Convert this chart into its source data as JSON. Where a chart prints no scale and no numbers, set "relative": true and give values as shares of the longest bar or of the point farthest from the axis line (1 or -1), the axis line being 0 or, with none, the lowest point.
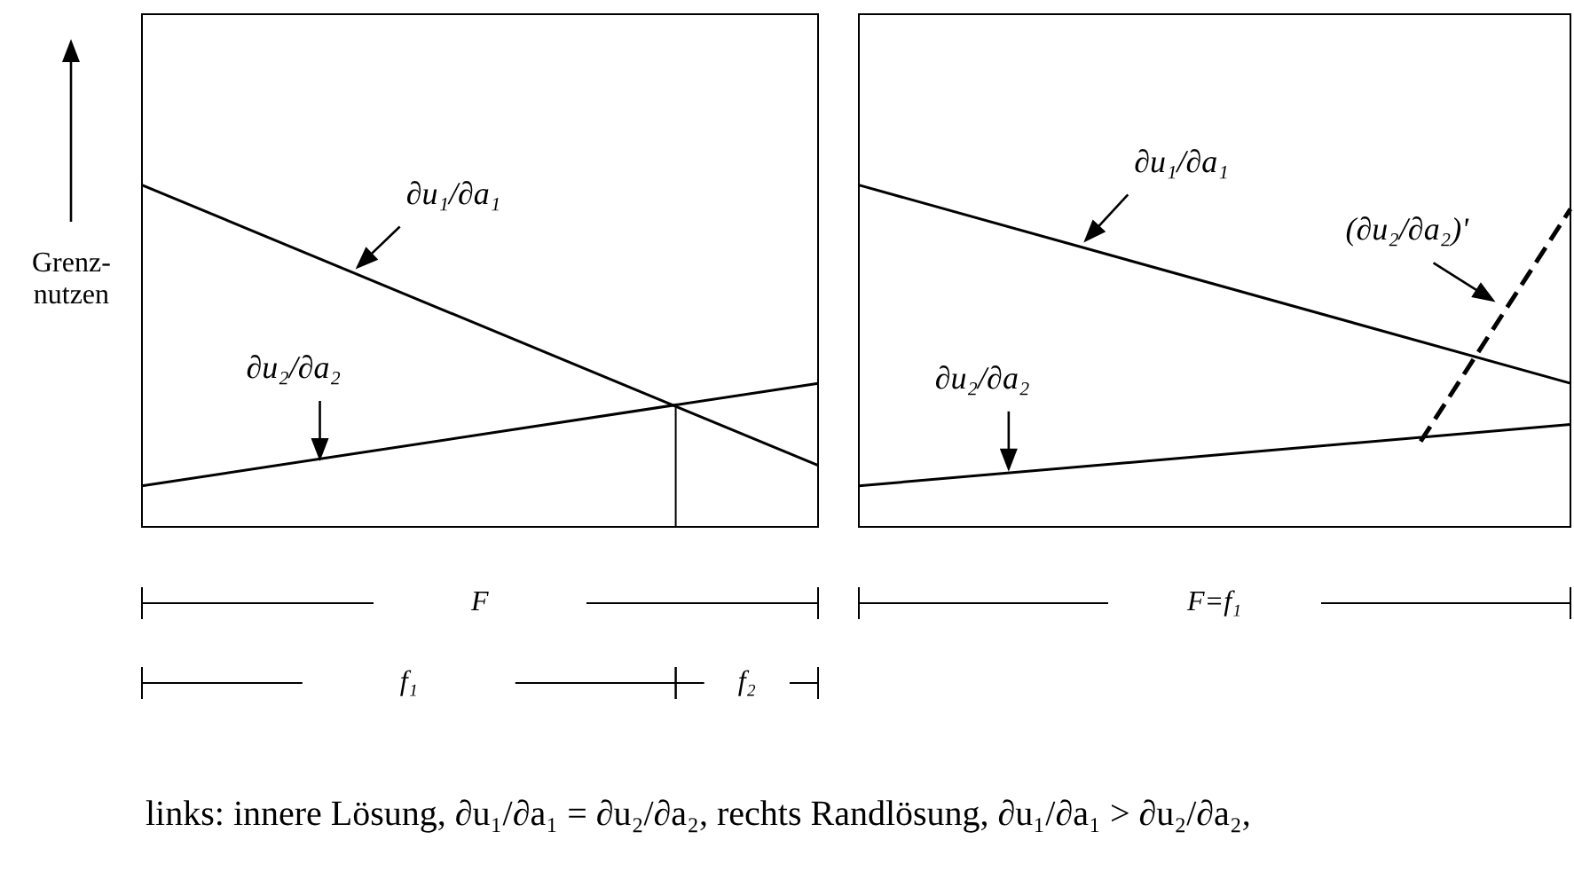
{
  "chart_data": [
    {
      "type": "line",
      "relative": true,
      "ylabel": "Grenz-\nnutzen",
      "categories": [
        null,
        null,
        null,
        null,
        null,
        null,
        null,
        null,
        null,
        null,
        null,
        null,
        null,
        null,
        null,
        null,
        null,
        null,
        null,
        null
      ],
      "tick_labels": false,
      "grid": false,
      "legend": false,
      "marker": "none",
      "annotations": [
        "F",
        "f₁",
        "f₂",
        "links: innere Lösung, ∂u₁/∂a₁ = ∂u₂/∂a₂, rechts Randlösung, ∂u₁/∂a₁ > ∂u₂/∂a₂,"
      ],
      "series": [
        {
          "name": "∂u₁/∂a₁",
          "color": "#000000",
          "values": [
            1,
            null,
            null,
            null,
            null,
            null,
            null,
            null,
            null,
            null,
            null,
            null,
            null,
            null,
            null,
            null,
            null,
            null,
            null,
            0.18
          ],
          "line_style": "solid"
        },
        {
          "name": "∂u₂/∂a₂",
          "color": "#000000",
          "values": [
            0.12,
            null,
            null,
            null,
            null,
            null,
            null,
            null,
            null,
            null,
            null,
            null,
            null,
            null,
            null,
            null,
            null,
            null,
            null,
            0.42
          ],
          "line_style": "solid"
        }
      ]
    },
    {
      "type": "line",
      "relative": true,
      "categories": [
        null,
        null,
        null,
        null,
        null,
        null,
        null,
        null,
        null,
        null,
        null,
        null,
        null,
        null,
        null,
        null,
        null,
        null,
        null,
        null
      ],
      "tick_labels": false,
      "grid": false,
      "legend": false,
      "marker": "none",
      "annotations": [
        "F=f₁"
      ],
      "series": [
        {
          "name": "∂u₁/∂a₁",
          "color": "#000000",
          "values": [
            1,
            null,
            null,
            null,
            null,
            null,
            null,
            null,
            null,
            null,
            null,
            null,
            null,
            null,
            null,
            null,
            null,
            null,
            null,
            0.42
          ],
          "line_style": "solid"
        },
        {
          "name": "∂u₂/∂a₂",
          "color": "#000000",
          "values": [
            0.12,
            null,
            null,
            null,
            null,
            null,
            null,
            null,
            null,
            null,
            null,
            null,
            null,
            null,
            null,
            null,
            null,
            null,
            null,
            0.3
          ],
          "line_style": "solid"
        },
        {
          "name": "(∂u₂/∂a₂)'",
          "color": "#000000",
          "values": [
            null,
            null,
            null,
            null,
            null,
            null,
            null,
            null,
            null,
            null,
            null,
            null,
            null,
            null,
            null,
            0.25,
            null,
            null,
            null,
            0.93
          ],
          "line_style": "dashed"
        }
      ]
    }
  ]
}
